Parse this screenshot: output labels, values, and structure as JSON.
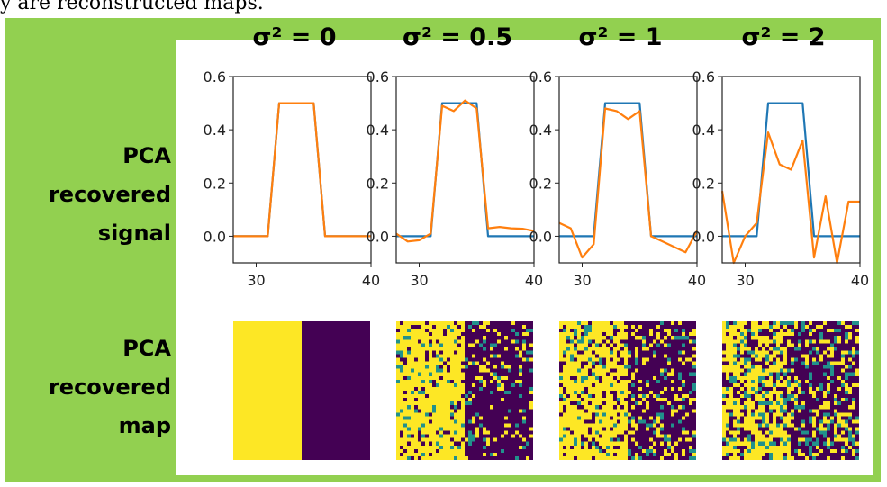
{
  "caption": "y are reconstructed maps.",
  "row_labels": {
    "signal": [
      "PCA",
      "recovered",
      "signal"
    ],
    "map": [
      "PCA",
      "recovered",
      "map"
    ]
  },
  "colors": {
    "background": "#92d050",
    "true_signal": "#1f77b4",
    "recovered": "#ff7f0e",
    "map_high": "#fde725",
    "map_low": "#440154",
    "map_mid": "#21918c"
  },
  "chart_data": [
    {
      "type": "line",
      "title": "σ² = 0",
      "x": [
        28,
        29,
        30,
        31,
        32,
        33,
        34,
        35,
        36,
        37,
        38,
        39,
        40
      ],
      "xticks": [
        30,
        40
      ],
      "yticks": [
        "0.6",
        "0.4",
        "0.2",
        "0.0"
      ],
      "xlim": [
        28,
        40
      ],
      "ylim": [
        -0.1,
        0.6
      ],
      "series": [
        {
          "values": [
            0,
            0,
            0,
            0,
            0.5,
            0.5,
            0.5,
            0.5,
            0,
            0,
            0,
            0,
            0
          ]
        },
        {
          "values": [
            0,
            0,
            0,
            0,
            0.5,
            0.5,
            0.5,
            0.5,
            0,
            0,
            0,
            0,
            0
          ]
        }
      ]
    },
    {
      "type": "line",
      "title": "σ² = 0.5",
      "x": [
        28,
        29,
        30,
        31,
        32,
        33,
        34,
        35,
        36,
        37,
        38,
        39,
        40
      ],
      "xticks": [
        30,
        40
      ],
      "yticks": [
        "0.6",
        "0.4",
        "0.2",
        "0.0"
      ],
      "xlim": [
        28,
        40
      ],
      "ylim": [
        -0.1,
        0.6
      ],
      "series": [
        {
          "values": [
            0,
            0,
            0,
            0,
            0.5,
            0.5,
            0.5,
            0.5,
            0,
            0,
            0,
            0,
            0
          ]
        },
        {
          "values": [
            0.01,
            -0.02,
            -0.015,
            0.01,
            0.49,
            0.47,
            0.51,
            0.48,
            0.03,
            0.035,
            0.03,
            0.028,
            0.02
          ]
        }
      ]
    },
    {
      "type": "line",
      "title": "σ² = 1",
      "x": [
        28,
        29,
        30,
        31,
        32,
        33,
        34,
        35,
        36,
        37,
        38,
        39,
        40
      ],
      "xticks": [
        30,
        40
      ],
      "yticks": [
        "0.6",
        "0.4",
        "0.2",
        "0.0"
      ],
      "xlim": [
        28,
        40
      ],
      "ylim": [
        -0.1,
        0.6
      ],
      "series": [
        {
          "values": [
            0,
            0,
            0,
            0,
            0.5,
            0.5,
            0.5,
            0.5,
            0,
            0,
            0,
            0,
            0
          ]
        },
        {
          "values": [
            0.05,
            0.03,
            -0.08,
            -0.03,
            0.48,
            0.47,
            0.44,
            0.47,
            0.0,
            -0.02,
            -0.04,
            -0.06,
            0.02
          ]
        }
      ]
    },
    {
      "type": "line",
      "title": "σ² = 2",
      "x": [
        28,
        29,
        30,
        31,
        32,
        33,
        34,
        35,
        36,
        37,
        38,
        39,
        40
      ],
      "xticks": [
        30,
        40
      ],
      "yticks": [
        "0.6",
        "0.4",
        "0.2",
        "0.0"
      ],
      "xlim": [
        28,
        40
      ],
      "ylim": [
        -0.1,
        0.6
      ],
      "series": [
        {
          "values": [
            0,
            0,
            0,
            0,
            0.5,
            0.5,
            0.5,
            0.5,
            0,
            0,
            0,
            0,
            0
          ]
        },
        {
          "values": [
            0.17,
            -0.1,
            0.0,
            0.05,
            0.39,
            0.27,
            0.25,
            0.36,
            -0.08,
            0.15,
            -0.1,
            0.13,
            0.13
          ]
        }
      ]
    }
  ],
  "maps": [
    {
      "noise_level": 0
    },
    {
      "noise_level": 0.5
    },
    {
      "noise_level": 1
    },
    {
      "noise_level": 2
    }
  ]
}
